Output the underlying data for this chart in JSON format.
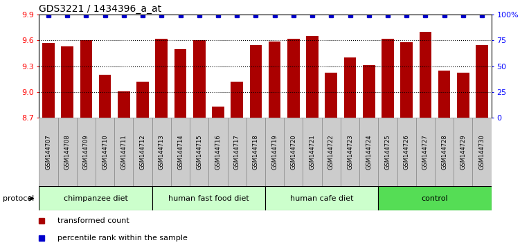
{
  "title": "GDS3221 / 1434396_a_at",
  "samples": [
    "GSM144707",
    "GSM144708",
    "GSM144709",
    "GSM144710",
    "GSM144711",
    "GSM144712",
    "GSM144713",
    "GSM144714",
    "GSM144715",
    "GSM144716",
    "GSM144717",
    "GSM144718",
    "GSM144719",
    "GSM144720",
    "GSM144721",
    "GSM144722",
    "GSM144723",
    "GSM144724",
    "GSM144725",
    "GSM144726",
    "GSM144727",
    "GSM144728",
    "GSM144729",
    "GSM144730"
  ],
  "values": [
    9.57,
    9.53,
    9.6,
    9.2,
    9.01,
    9.12,
    9.62,
    9.5,
    9.6,
    8.83,
    9.12,
    9.55,
    9.59,
    9.62,
    9.65,
    9.22,
    9.4,
    9.31,
    9.62,
    9.58,
    9.7,
    9.25,
    9.22,
    9.55
  ],
  "groups": [
    {
      "label": "chimpanzee diet",
      "start": 0,
      "end": 6,
      "color": "#ccffcc"
    },
    {
      "label": "human fast food diet",
      "start": 6,
      "end": 12,
      "color": "#ccffcc"
    },
    {
      "label": "human cafe diet",
      "start": 12,
      "end": 18,
      "color": "#ccffcc"
    },
    {
      "label": "control",
      "start": 18,
      "end": 24,
      "color": "#55dd55"
    }
  ],
  "bar_color": "#aa0000",
  "percentile_color": "#0000cc",
  "bar_bottom": 8.7,
  "ylim_min": 8.7,
  "ylim_max": 9.9,
  "yticks": [
    8.7,
    9.0,
    9.3,
    9.6,
    9.9
  ],
  "right_ytick_labels": [
    "0",
    "25",
    "50",
    "75",
    "100%"
  ],
  "right_ytick_pcts": [
    0,
    25,
    50,
    75,
    100
  ],
  "grid_lines": [
    9.0,
    9.3,
    9.6
  ],
  "legend_items": [
    {
      "label": "transformed count",
      "color": "#aa0000"
    },
    {
      "label": "percentile rank within the sample",
      "color": "#0000cc"
    }
  ],
  "title_fontsize": 10,
  "axis_fontsize": 8,
  "label_fontsize": 6,
  "group_fontsize": 8,
  "sample_box_color": "#cccccc",
  "sample_box_edge": "#888888"
}
